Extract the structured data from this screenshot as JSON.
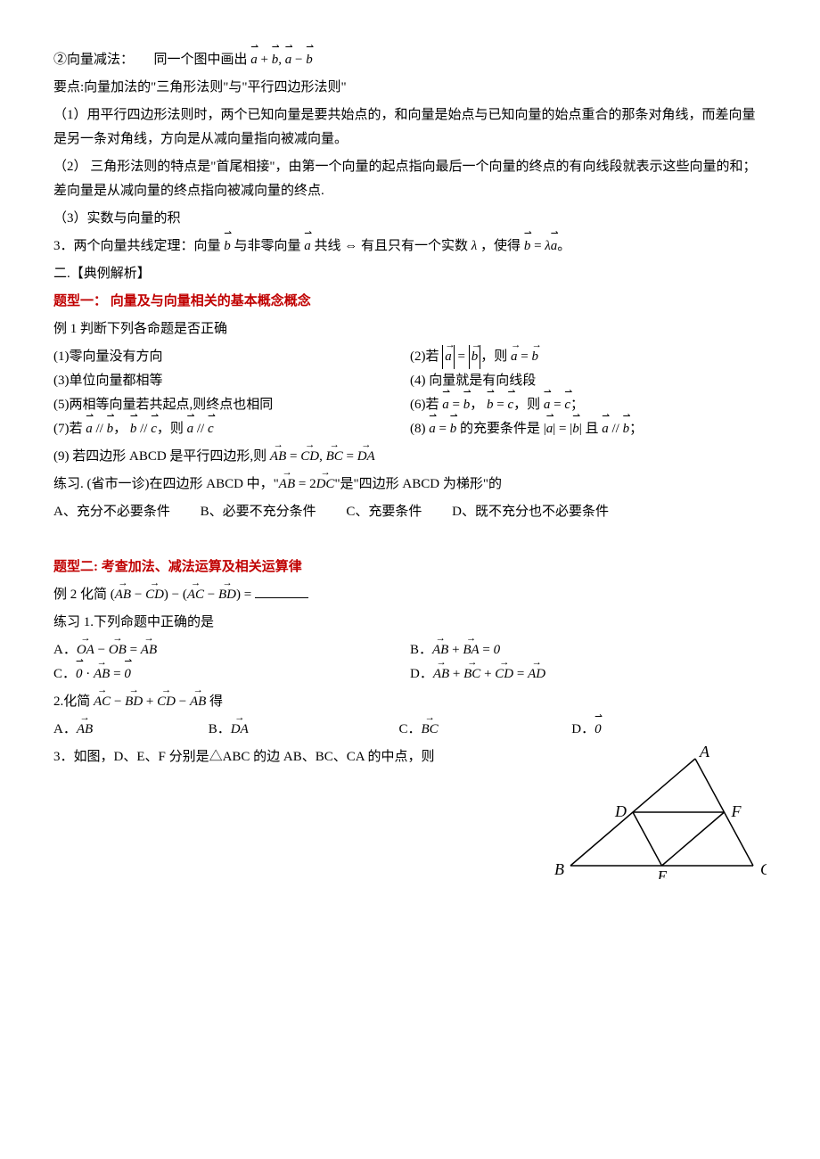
{
  "line1_prefix": "②向量减法：　　同一个图中画出 ",
  "line2": "要点:向量加法的\"三角形法则\"与\"平行四边形法则\"",
  "line3": "（1）用平行四边形法则时，两个已知向量是要共始点的，和向量是始点与已知向量的始点重合的那条对角线，而差向量是另一条对角线，方向是从减向量指向被减向量。",
  "line4": "（2）  三角形法则的特点是\"首尾相接\"，由第一个向量的起点指向最后一个向量的终点的有向线段就表示这些向量的和；差向量是从减向量的终点指向被减向量的终点.",
  "line5": "（3）实数与向量的积",
  "line6_a": "3．两个向量共线定理：向量 ",
  "line6_b": " 与非零向量 ",
  "line6_c": " 共线 ⇔ 有且只有一个实数 ",
  "line6_d": "，使得 ",
  "section2": "二.【典例解析】",
  "type1_title": "题型一：  向量及与向量相关的基本概念概念",
  "ex1_title": "例 1 判断下列各命题是否正确",
  "q1": "(1)零向量没有方向",
  "q2_a": "(2)若 ",
  "q2_b": "，则 ",
  "q3": "(3)单位向量都相等",
  "q4": "(4) 向量就是有向线段",
  "q5": "(5)两相等向量若共起点,则终点也相同",
  "q6_a": "(6)若 ",
  "q6_b": "，则 ",
  "q7_a": "(7)若 ",
  "q7_b": "，则 ",
  "q8_a": "(8)  ",
  "q8_b": " 的充要条件是 ",
  "q8_c": " 且 ",
  "q9_a": "(9) 若四边形 ABCD 是平行四边形,则 ",
  "practice1_a": "练习. (省市一诊)在四边形 ABCD 中，\"",
  "practice1_b": "\"是\"四边形 ABCD 为梯形\"的",
  "optA1": "A、充分不必要条件",
  "optB1": "B、必要不充分条件",
  "optC1": "C、充要条件",
  "optD1": "D、既不充分也不必要条件",
  "type2_title": "题型二: 考查加法、减法运算及相关运算律",
  "ex2_a": "例 2 化简 ",
  "ex2_b": " = ",
  "practice2": "练习 1.下列命题中正确的是",
  "optA2_pre": "A．",
  "optB2_pre": "B．",
  "optC2_pre": "C．",
  "optD2_pre": "D．",
  "q2_2_a": "2.化简 ",
  "q2_2_b": " 得",
  "optA3_pre": "A．",
  "optB3_pre": "B．",
  "optC3_pre": "C．",
  "optD3_pre": "D．",
  "q3_text": "3．如图，D、E、F 分别是△ABC 的边 AB、BC、CA 的中点，则",
  "sym": {
    "a": "a",
    "b": "b",
    "c": "c",
    "lambda": "λ",
    "AB": "AB",
    "CD": "CD",
    "BC": "BC",
    "DA": "DA",
    "DC": "DC",
    "OA": "OA",
    "OB": "OB",
    "BA": "BA",
    "AD": "AD",
    "AC": "AC",
    "BD": "BD",
    "zero": "0",
    "eq": " = ",
    "comma": "，",
    "semicolon": "；",
    "par": " // ",
    "two": "2"
  },
  "tri": {
    "A": "A",
    "B": "B",
    "C": "C",
    "D": "D",
    "E": "E",
    "F": "F",
    "stroke": "#000000",
    "fill": "none",
    "font": "italic 18px Times New Roman"
  }
}
